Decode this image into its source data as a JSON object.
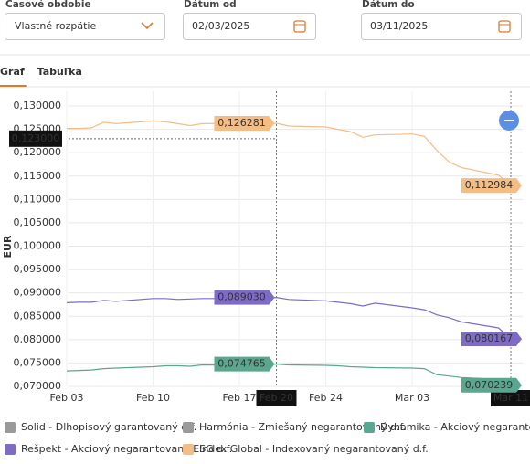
{
  "filters": [
    {
      "label": "Časové obdobie",
      "value": "Vlastné rozpätie"
    },
    {
      "label": "Dátum od",
      "value": "02/03/2025"
    },
    {
      "label": "Dátum do",
      "value": "03/11/2025"
    }
  ],
  "tabs": [
    "Graf",
    "Tabuľka"
  ],
  "active_tab": 0,
  "chart_data": {
    "type": "line",
    "y_label": "EUR",
    "x": [
      "Feb 03",
      "Feb 04",
      "Feb 05",
      "Feb 06",
      "Feb 07",
      "Feb 10",
      "Feb 11",
      "Feb 12",
      "Feb 13",
      "Feb 14",
      "Feb 17",
      "Feb 18",
      "Feb 19",
      "Feb 20",
      "Feb 21",
      "Feb 24",
      "Feb 25",
      "Feb 26",
      "Feb 27",
      "Feb 28",
      "Mar 03",
      "Mar 04",
      "Mar 05",
      "Mar 06",
      "Mar 07",
      "Mar 10",
      "Mar 11"
    ],
    "xlim": [
      "Feb 03",
      "Mar 11"
    ],
    "xticks": [
      "Feb 03",
      "Feb 10",
      "Feb 17",
      "Feb 24",
      "Mar 03"
    ],
    "highlight_x": [
      "Feb 20",
      "Mar 11"
    ],
    "ylim": [
      0.07,
      0.13
    ],
    "yticks": [
      {
        "value": 0.07,
        "label": "0,070000"
      },
      {
        "value": 0.075,
        "label": "0,075000"
      },
      {
        "value": 0.08,
        "label": "0,080000"
      },
      {
        "value": 0.085,
        "label": "0,085000"
      },
      {
        "value": 0.09,
        "label": "0,090000"
      },
      {
        "value": 0.095,
        "label": "0,095000"
      },
      {
        "value": 0.1,
        "label": "0,100000"
      },
      {
        "value": 0.105,
        "label": "0,105000"
      },
      {
        "value": 0.11,
        "label": "0,110000"
      },
      {
        "value": 0.115,
        "label": "0,115000"
      },
      {
        "value": 0.12,
        "label": "0,120000"
      },
      {
        "value": 0.125,
        "label": "0,125000"
      },
      {
        "value": 0.13,
        "label": "0,130000"
      }
    ],
    "crosshair_y": {
      "value": 0.123,
      "label": "0,123000"
    },
    "grid": true,
    "hidden_series": [
      {
        "name": "Solid - Dlhopisový garantovaný d.f.",
        "color": "#9a9a9a"
      },
      {
        "name": "Harmónia - Zmiešaný negarantovaný d.f.",
        "color": "#9a9a9a"
      }
    ],
    "series": [
      {
        "name": "Dynamika - Akciový negarantovaný d.f.",
        "color": "#5aa68e",
        "values": [
          0.0733,
          0.0734,
          0.0735,
          0.0738,
          0.0739,
          0.0742,
          0.0744,
          0.0744,
          0.0743,
          0.0746,
          0.0745,
          0.0747,
          0.0747,
          0.074765,
          0.0746,
          0.0745,
          0.0744,
          0.0742,
          0.0741,
          0.074,
          0.0739,
          0.0738,
          0.0725,
          0.0722,
          0.0719,
          0.0715,
          0.070239
        ],
        "value_labels": [
          null,
          null,
          null,
          null,
          null,
          null,
          null,
          null,
          null,
          null,
          null,
          null,
          null,
          "0,074765",
          null,
          null,
          null,
          null,
          null,
          null,
          null,
          null,
          null,
          null,
          null,
          null,
          "0,070239"
        ]
      },
      {
        "name": "Rešpekt - Akciový negarantovaný ESG d.f.",
        "color": "#7e6cc4",
        "values": [
          0.0879,
          0.088,
          0.088,
          0.0884,
          0.0882,
          0.0888,
          0.0888,
          0.0886,
          0.0887,
          0.0888,
          0.0888,
          0.0889,
          0.0889,
          0.08903,
          0.0886,
          0.0883,
          0.088,
          0.0877,
          0.0872,
          0.0878,
          0.0868,
          0.0864,
          0.0853,
          0.0847,
          0.0838,
          0.0825,
          0.080167
        ],
        "value_labels": [
          null,
          null,
          null,
          null,
          null,
          null,
          null,
          null,
          null,
          null,
          null,
          null,
          null,
          "0,089030",
          null,
          null,
          null,
          null,
          null,
          null,
          null,
          null,
          null,
          null,
          null,
          null,
          "0,080167"
        ]
      },
      {
        "name": "Index Global - Indexovaný negarantovaný d.f.",
        "color": "#f4bd85",
        "values": [
          0.1252,
          0.1252,
          0.1253,
          0.1265,
          0.1262,
          0.1268,
          0.1266,
          0.1262,
          0.1258,
          0.1262,
          0.1263,
          0.1261,
          0.1262,
          0.126281,
          0.1257,
          0.1255,
          0.125,
          0.1245,
          0.1233,
          0.1238,
          0.124,
          0.1235,
          0.1205,
          0.118,
          0.1168,
          0.1152,
          0.112984
        ],
        "value_labels": [
          null,
          null,
          null,
          null,
          null,
          null,
          null,
          null,
          null,
          null,
          null,
          null,
          null,
          "0,126281",
          null,
          null,
          null,
          null,
          null,
          null,
          null,
          null,
          null,
          null,
          null,
          null,
          "0,112984"
        ]
      }
    ]
  }
}
